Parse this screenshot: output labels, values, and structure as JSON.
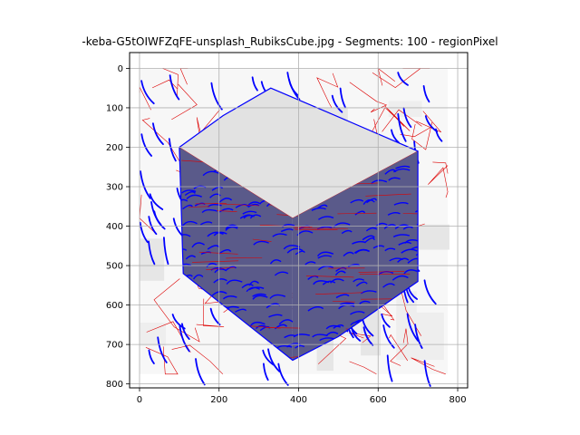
{
  "chart_data": {
    "type": "image",
    "title": "-keba-G5tOIWFZqFE-unsplash_RubiksCube.jpg - Segments: 100 - regionPixel",
    "xlim": [
      -25,
      825
    ],
    "ylim": [
      810,
      -40
    ],
    "image_extent": [
      0,
      775,
      0,
      775
    ],
    "x_ticks": [
      0,
      200,
      400,
      600,
      800
    ],
    "x_tick_labels": [
      "0",
      "200",
      "400",
      "600",
      "800"
    ],
    "y_ticks": [
      0,
      100,
      200,
      300,
      400,
      500,
      600,
      700,
      800
    ],
    "y_tick_labels": [
      "0",
      "100",
      "200",
      "300",
      "400",
      "500",
      "600",
      "700",
      "800"
    ],
    "grid": true,
    "segments": 100,
    "cube_outline": [
      [
        100,
        200
      ],
      [
        210,
        120
      ],
      [
        330,
        50
      ],
      [
        470,
        110
      ],
      [
        700,
        210
      ],
      [
        700,
        540
      ],
      [
        500,
        680
      ],
      [
        385,
        740
      ],
      [
        210,
        600
      ],
      [
        110,
        520
      ]
    ],
    "cube_front_vertex": [
      385,
      380
    ],
    "colors": {
      "boundary": "#dd0000",
      "contour": "#0000ff",
      "background_light": "#f7f7f7",
      "background_mid": "#e6e6e6",
      "cube_fill": "#5a5a8a",
      "grid": "#b0b0b0"
    }
  }
}
